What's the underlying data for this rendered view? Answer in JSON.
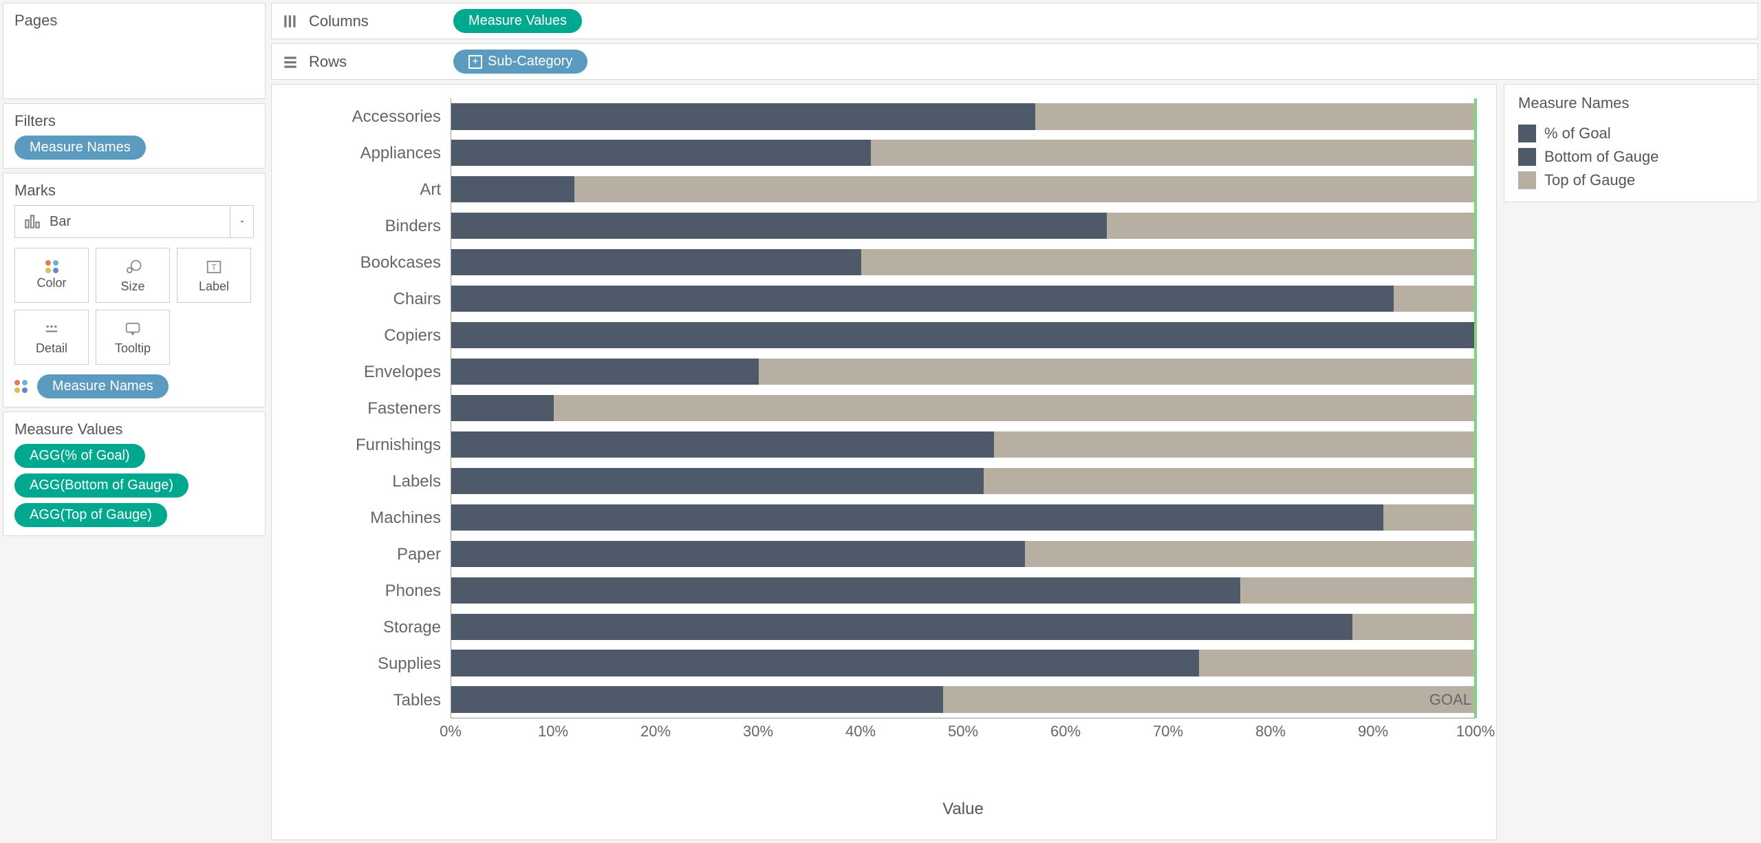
{
  "panels": {
    "pages": {
      "title": "Pages"
    },
    "filters": {
      "title": "Filters",
      "pill": "Measure Names"
    },
    "marks": {
      "title": "Marks",
      "dropdown": "Bar",
      "buttons": [
        "Color",
        "Size",
        "Label",
        "Detail",
        "Tooltip"
      ],
      "color_pill": "Measure Names"
    },
    "measure_values": {
      "title": "Measure Values",
      "pills": [
        "AGG(% of Goal)",
        "AGG(Bottom of Gauge)",
        "AGG(Top of Gauge)"
      ]
    }
  },
  "shelves": {
    "columns": {
      "label": "Columns",
      "pill": "Measure Values"
    },
    "rows": {
      "label": "Rows",
      "pill": "Sub-Category"
    }
  },
  "legend": {
    "title": "Measure Names",
    "items": [
      {
        "label": "% of Goal",
        "color": "#4e5a6a"
      },
      {
        "label": "Bottom of Gauge",
        "color": "#4e5a6a"
      },
      {
        "label": "Top of Gauge",
        "color": "#b8afa3"
      }
    ]
  },
  "chart": {
    "type": "stacked-bar-horizontal",
    "x_title": "Value",
    "x_ticks": [
      "0%",
      "10%",
      "20%",
      "30%",
      "40%",
      "50%",
      "60%",
      "70%",
      "80%",
      "90%",
      "100%"
    ],
    "goal_label": "GOAL",
    "goal_pct": 100,
    "goal_color": "#7bd67b",
    "colors": {
      "fill": "#4e5a6a",
      "remainder": "#b8afa3"
    },
    "categories": [
      {
        "label": "Accessories",
        "pct": 57
      },
      {
        "label": "Appliances",
        "pct": 41
      },
      {
        "label": "Art",
        "pct": 12
      },
      {
        "label": "Binders",
        "pct": 64
      },
      {
        "label": "Bookcases",
        "pct": 40
      },
      {
        "label": "Chairs",
        "pct": 92
      },
      {
        "label": "Copiers",
        "pct": 100
      },
      {
        "label": "Envelopes",
        "pct": 30
      },
      {
        "label": "Fasteners",
        "pct": 10
      },
      {
        "label": "Furnishings",
        "pct": 53
      },
      {
        "label": "Labels",
        "pct": 52
      },
      {
        "label": "Machines",
        "pct": 91
      },
      {
        "label": "Paper",
        "pct": 56
      },
      {
        "label": "Phones",
        "pct": 77
      },
      {
        "label": "Storage",
        "pct": 88
      },
      {
        "label": "Supplies",
        "pct": 73
      },
      {
        "label": "Tables",
        "pct": 48
      }
    ]
  },
  "icons": {
    "dot_colors": [
      "#e17b5d",
      "#6fb1d8",
      "#e8b94e",
      "#5f8bc2"
    ]
  }
}
